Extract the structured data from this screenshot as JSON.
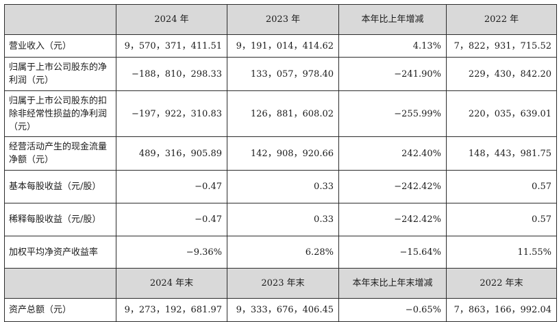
{
  "header1": [
    "",
    "2024 年",
    "2023 年",
    "本年比上年增减",
    "2022 年"
  ],
  "rows1": [
    {
      "label": "营业收入（元）",
      "values": [
        "9，570，371，411.51",
        "9，191，014，414.62",
        "4.13%",
        "7，822，931，715.52"
      ]
    },
    {
      "label": "归属于上市公司股东的净利润（元）",
      "values": [
        "−188，810，298.33",
        "133，057，978.40",
        "−241.90%",
        "229，430，842.20"
      ]
    },
    {
      "label": "归属于上市公司股东的扣除非经常性损益的净利润（元）",
      "values": [
        "−197，922，310.83",
        "126，881，608.02",
        "−255.99%",
        "220，035，639.01"
      ]
    },
    {
      "label": "经营活动产生的现金流量净额（元）",
      "values": [
        "489，316，905.89",
        "142，908，920.66",
        "242.40%",
        "148，443，981.75"
      ]
    },
    {
      "label": "基本每股收益（元/股）",
      "values": [
        "−0.47",
        "0.33",
        "−242.42%",
        "0.57"
      ]
    },
    {
      "label": "稀释每股收益（元/股）",
      "values": [
        "−0.47",
        "0.33",
        "−242.42%",
        "0.57"
      ]
    },
    {
      "label": "加权平均净资产收益率",
      "values": [
        "−9.36%",
        "6.28%",
        "−15.64%",
        "11.55%"
      ]
    }
  ],
  "header2": [
    "",
    "2024 年末",
    "2023 年末",
    "本年末比上年末增减",
    "2022 年末"
  ],
  "rows2": [
    {
      "label": "资产总额（元）",
      "values": [
        "9，273，192，681.97",
        "9，333，676，406.45",
        "−0.65%",
        "7，863，166，992.04"
      ]
    }
  ]
}
